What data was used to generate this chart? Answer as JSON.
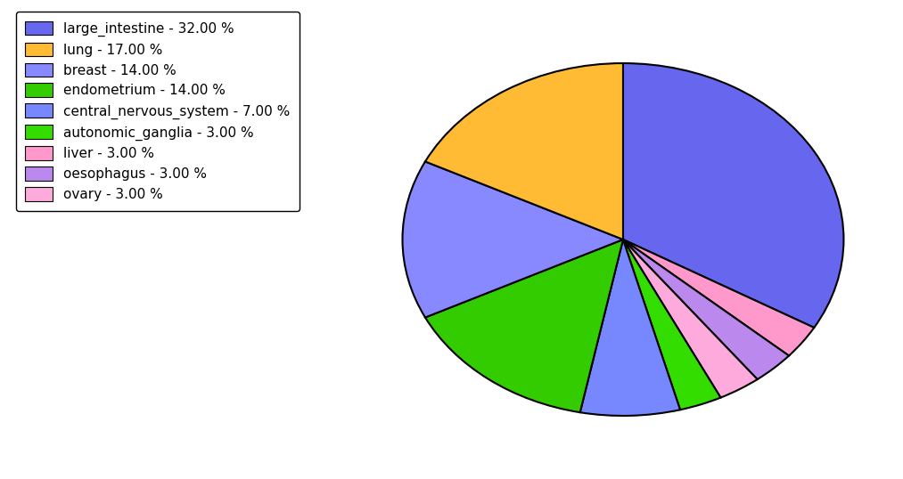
{
  "labels": [
    "large_intestine",
    "liver",
    "oesophagus",
    "ovary",
    "autonomic_ganglia",
    "central_nervous_system",
    "endometrium",
    "breast",
    "lung"
  ],
  "values": [
    32,
    3,
    3,
    3,
    3,
    7,
    14,
    14,
    17
  ],
  "colors": [
    "#6666ee",
    "#ff99cc",
    "#bb88ee",
    "#ffaadd",
    "#33dd00",
    "#7788ff",
    "#33cc00",
    "#8888ff",
    "#ffbb33"
  ],
  "legend_labels": [
    "large_intestine - 32.00 %",
    "lung - 17.00 %",
    "breast - 14.00 %",
    "endometrium - 14.00 %",
    "central_nervous_system - 7.00 %",
    "autonomic_ganglia - 3.00 %",
    "liver - 3.00 %",
    "oesophagus - 3.00 %",
    "ovary - 3.00 %"
  ],
  "legend_colors": [
    "#6666ee",
    "#ffbb33",
    "#8888ff",
    "#33cc00",
    "#7788ff",
    "#33dd00",
    "#ff99cc",
    "#bb88ee",
    "#ffaadd"
  ],
  "startangle": 90,
  "figsize": [
    10.13,
    5.38
  ],
  "dpi": 100
}
